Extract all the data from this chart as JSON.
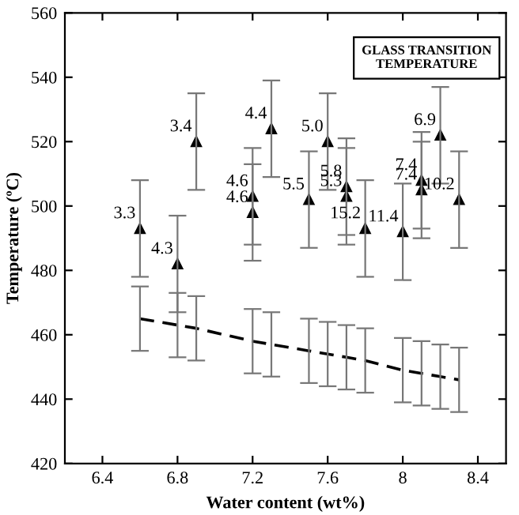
{
  "chart_data": {
    "type": "scatter",
    "title": "GLASS TRANSITION\nTEMPERATURE",
    "xlabel": "Water content (wt%)",
    "ylabel": "Temperature (ºC)",
    "xlim": [
      6.2,
      8.55
    ],
    "ylim": [
      420,
      560
    ],
    "xticks": [
      6.4,
      6.8,
      7.2,
      7.6,
      8,
      8.4
    ],
    "yticks": [
      420,
      440,
      460,
      480,
      500,
      520,
      540,
      560
    ],
    "grid": false,
    "legend": false,
    "series": [
      {
        "marker": "triangle",
        "color": "#000000",
        "x": [
          6.6,
          6.8,
          6.9,
          7.2,
          7.2,
          7.3,
          7.5,
          7.6,
          7.7,
          7.7,
          7.8,
          8.0,
          8.1,
          8.1,
          8.2,
          8.3
        ],
        "values": [
          493,
          482,
          520,
          503,
          498,
          524,
          502,
          520,
          506,
          503,
          493,
          492,
          508,
          505,
          522,
          502
        ],
        "errors": [
          15,
          15,
          15,
          15,
          15,
          15,
          15,
          15,
          15,
          15,
          15,
          15,
          15,
          15,
          15,
          15
        ]
      },
      {
        "type": "line",
        "marker": "none",
        "line_style": "dashed",
        "color": "#000000",
        "x": [
          6.6,
          6.8,
          6.9,
          7.2,
          7.3,
          7.5,
          7.6,
          7.7,
          7.8,
          8.0,
          8.1,
          8.2,
          8.3
        ],
        "values": [
          465,
          463,
          462,
          458,
          457,
          455,
          454,
          453,
          452,
          449,
          448,
          447,
          446
        ],
        "errors": [
          10,
          10,
          10,
          10,
          10,
          10,
          10,
          10,
          10,
          10,
          10,
          10,
          10
        ]
      }
    ],
    "annotations": [
      {
        "text": "3.3",
        "x": 6.6,
        "y": 493
      },
      {
        "text": "4.3",
        "x": 6.8,
        "y": 482
      },
      {
        "text": "3.4",
        "x": 6.9,
        "y": 520
      },
      {
        "text": "4.6",
        "x": 7.2,
        "y": 503
      },
      {
        "text": "4.6",
        "x": 7.2,
        "y": 498
      },
      {
        "text": "4.4",
        "x": 7.3,
        "y": 524
      },
      {
        "text": "5.5",
        "x": 7.5,
        "y": 502
      },
      {
        "text": "5.0",
        "x": 7.6,
        "y": 520
      },
      {
        "text": "5.8",
        "x": 7.7,
        "y": 506
      },
      {
        "text": "5.3",
        "x": 7.7,
        "y": 503
      },
      {
        "text": "15.2",
        "x": 7.8,
        "y": 493
      },
      {
        "text": "11.4",
        "x": 8.0,
        "y": 492
      },
      {
        "text": "7.4",
        "x": 8.1,
        "y": 508
      },
      {
        "text": "7.4",
        "x": 8.1,
        "y": 505
      },
      {
        "text": "6.9",
        "x": 8.2,
        "y": 522
      },
      {
        "text": "10.2",
        "x": 8.3,
        "y": 502
      }
    ]
  }
}
